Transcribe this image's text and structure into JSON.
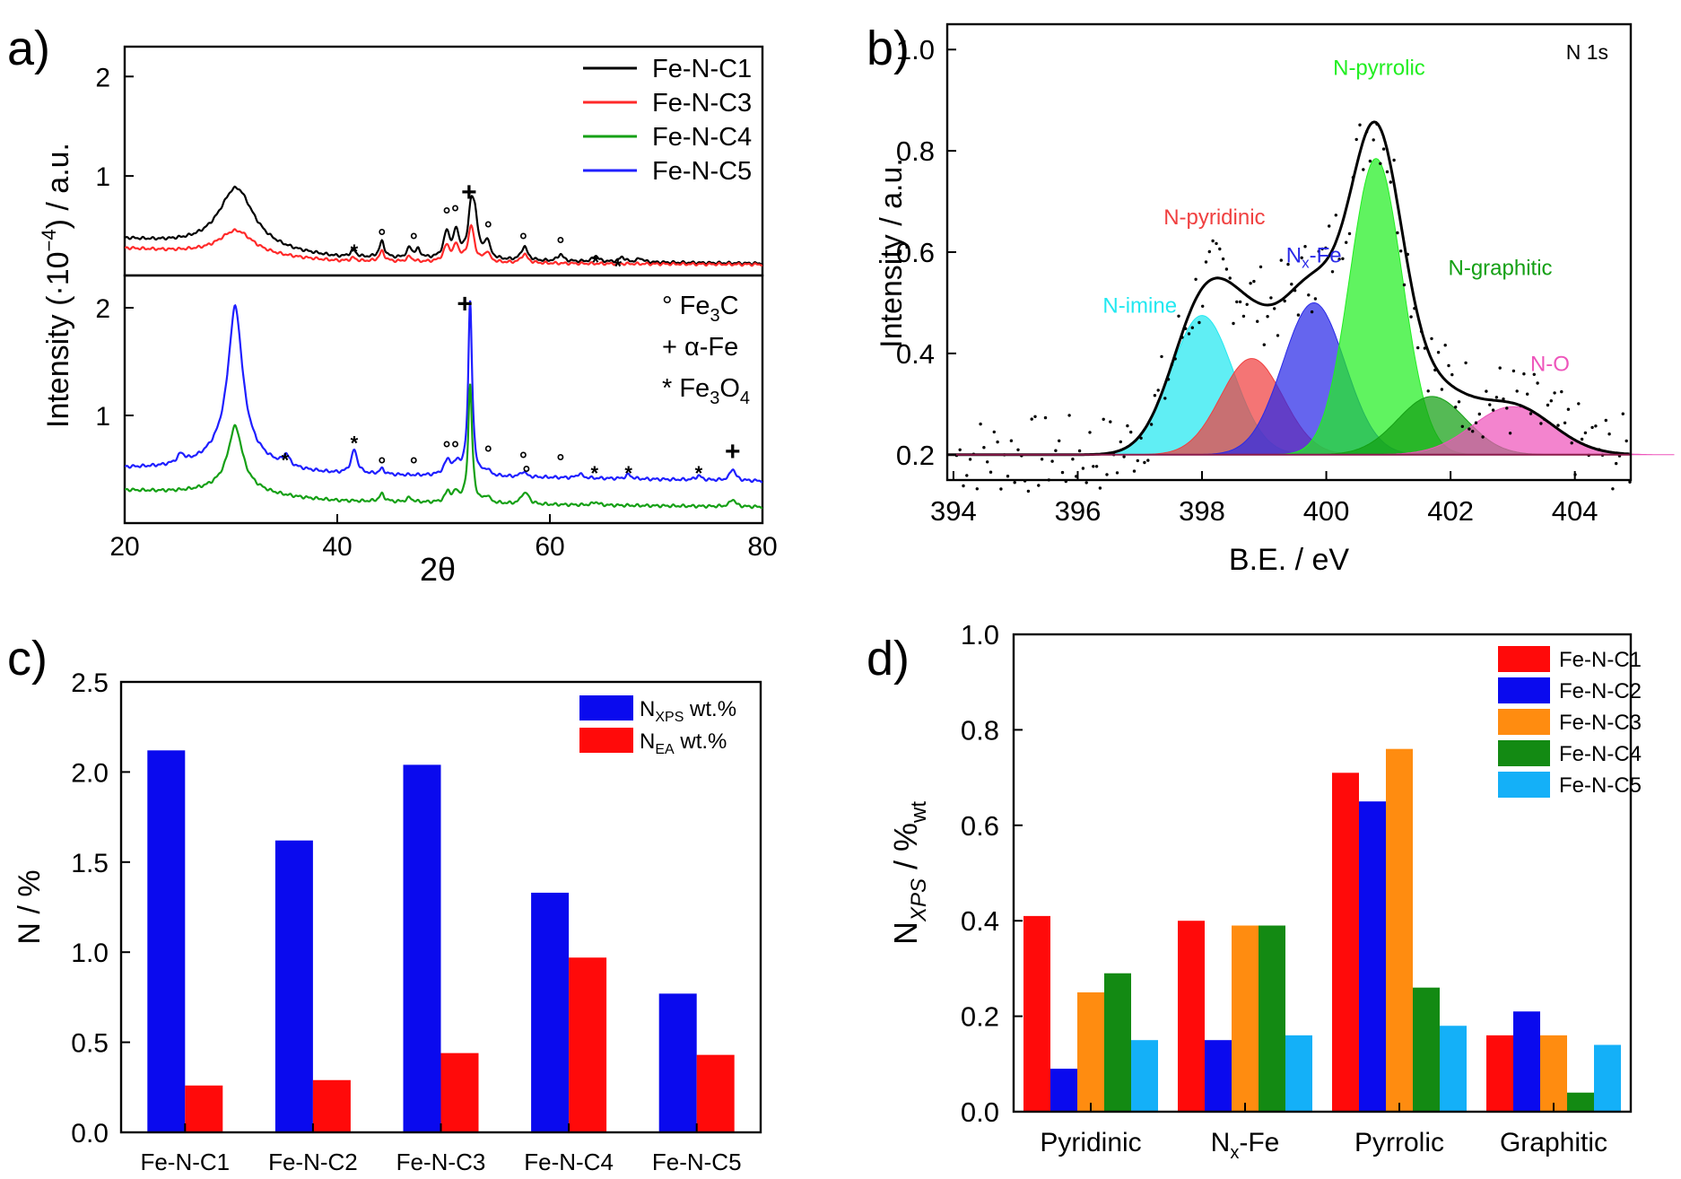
{
  "chart_data": [
    {
      "panel": "a)",
      "type": "line",
      "title": "",
      "xlabel": "2θ",
      "ylabel_main": "Intensity (·10",
      "ylabel_exp": "−4",
      "ylabel_tail": ")  / a.u.",
      "xlim": [
        20,
        80
      ],
      "xticks": [
        20,
        40,
        60,
        80
      ],
      "top": {
        "ylim": [
          0,
          2.3
        ],
        "yticks": [
          1,
          2
        ],
        "series": [
          {
            "name": "Fe-N-C1",
            "color": "#000000",
            "base": [
              [
                20,
                0.36
              ],
              [
                40,
                0.17
              ],
              [
                60,
                0.14
              ],
              [
                80,
                0.12
              ]
            ],
            "peaks": [
              [
                30.5,
                0.62,
                2.0
              ],
              [
                41.5,
                0.07,
                0.3
              ],
              [
                44.2,
                0.16,
                0.3
              ],
              [
                46.8,
                0.1,
                0.3
              ],
              [
                47.6,
                0.08,
                0.3
              ],
              [
                50.3,
                0.26,
                0.35
              ],
              [
                51.2,
                0.26,
                0.3
              ],
              [
                52.6,
                0.5,
                0.35
              ],
              [
                53.0,
                0.3,
                0.3
              ],
              [
                54.1,
                0.18,
                0.3
              ],
              [
                57.6,
                0.14,
                0.35
              ],
              [
                61.0,
                0.07,
                0.3
              ],
              [
                64.3,
                0.06,
                0.3
              ],
              [
                66.8,
                0.05,
                0.3
              ],
              [
                68.5,
                0.04,
                0.3
              ]
            ]
          },
          {
            "name": "Fe-N-C3",
            "color": "#ff2a2a",
            "base": [
              [
                20,
                0.27
              ],
              [
                40,
                0.14
              ],
              [
                60,
                0.12
              ],
              [
                80,
                0.11
              ]
            ],
            "peaks": [
              [
                30.5,
                0.25,
                2.0
              ],
              [
                41.5,
                0.03,
                0.3
              ],
              [
                44.2,
                0.1,
                0.3
              ],
              [
                46.8,
                0.05,
                0.3
              ],
              [
                50.3,
                0.16,
                0.35
              ],
              [
                51.2,
                0.16,
                0.3
              ],
              [
                52.6,
                0.36,
                0.35
              ],
              [
                54.1,
                0.1,
                0.3
              ],
              [
                57.6,
                0.09,
                0.35
              ]
            ]
          }
        ],
        "legend": [
          "Fe-N-C1",
          "Fe-N-C3",
          "Fe-N-C4",
          "Fe-N-C5"
        ],
        "markers": [
          {
            "sym": "*",
            "x": 41.6,
            "y": 0.28
          },
          {
            "sym": "°",
            "x": 44.2,
            "y": 0.4
          },
          {
            "sym": "°",
            "x": 47.2,
            "y": 0.36
          },
          {
            "sym": "°",
            "x": 50.3,
            "y": 0.62
          },
          {
            "sym": "°",
            "x": 51.1,
            "y": 0.64
          },
          {
            "sym": "+",
            "x": 52.4,
            "y": 0.82
          },
          {
            "sym": "°",
            "x": 54.2,
            "y": 0.48
          },
          {
            "sym": "°",
            "x": 57.5,
            "y": 0.36
          },
          {
            "sym": "°",
            "x": 61.0,
            "y": 0.32
          },
          {
            "sym": "*",
            "x": 64.3,
            "y": 0.17
          },
          {
            "sym": "*",
            "x": 66.4,
            "y": 0.13
          }
        ]
      },
      "bottom": {
        "ylim": [
          0,
          2.3
        ],
        "yticks": [
          1,
          2
        ],
        "series": [
          {
            "name": "Fe-N-C5",
            "color": "#1f1fff",
            "base": [
              [
                20,
                0.5
              ],
              [
                40,
                0.44
              ],
              [
                60,
                0.42
              ],
              [
                80,
                0.39
              ]
            ],
            "peaks": [
              [
                25.3,
                0.08,
                0.4
              ],
              [
                30.4,
                1.32,
                0.8
              ],
              [
                30.3,
                0.22,
                3.0
              ],
              [
                35.2,
                0.1,
                0.35
              ],
              [
                41.6,
                0.22,
                0.35
              ],
              [
                44.2,
                0.05,
                0.3
              ],
              [
                50.4,
                0.14,
                0.4
              ],
              [
                51.3,
                0.1,
                0.3
              ],
              [
                52.5,
                1.62,
                0.22
              ],
              [
                54.1,
                0.05,
                0.3
              ],
              [
                57.5,
                0.05,
                0.3
              ],
              [
                62.8,
                0.04,
                0.3
              ],
              [
                67.4,
                0.04,
                0.3
              ],
              [
                74.0,
                0.04,
                0.3
              ],
              [
                77.2,
                0.11,
                0.3
              ]
            ]
          },
          {
            "name": "Fe-N-C4",
            "color": "#16a016",
            "base": [
              [
                20,
                0.3
              ],
              [
                40,
                0.2
              ],
              [
                60,
                0.17
              ],
              [
                80,
                0.15
              ]
            ],
            "peaks": [
              [
                30.4,
                0.55,
                0.8
              ],
              [
                30.3,
                0.1,
                3.0
              ],
              [
                44.2,
                0.07,
                0.3
              ],
              [
                46.8,
                0.04,
                0.3
              ],
              [
                50.4,
                0.1,
                0.3
              ],
              [
                51.2,
                0.09,
                0.3
              ],
              [
                52.5,
                1.1,
                0.22
              ],
              [
                54.1,
                0.06,
                0.3
              ],
              [
                57.5,
                0.08,
                0.3
              ],
              [
                57.9,
                0.06,
                0.3
              ],
              [
                64.3,
                0.03,
                0.3
              ],
              [
                77.2,
                0.07,
                0.3
              ]
            ]
          }
        ],
        "legend_markers": [
          {
            "sym": "°",
            "label": "Fe",
            "sub": "3",
            "tail": "C"
          },
          {
            "sym": "+",
            "label": "α-Fe",
            "sub": "",
            "tail": ""
          },
          {
            "sym": "*",
            "label": "Fe",
            "sub": "3",
            "tail": "O",
            "sub2": "4"
          }
        ],
        "markers": [
          {
            "sym": "*",
            "x": 35.1,
            "y": 0.62
          },
          {
            "sym": "*",
            "x": 41.6,
            "y": 0.78
          },
          {
            "sym": "°",
            "x": 44.2,
            "y": 0.55
          },
          {
            "sym": "°",
            "x": 47.2,
            "y": 0.55
          },
          {
            "sym": "°",
            "x": 50.3,
            "y": 0.7
          },
          {
            "sym": "°",
            "x": 51.1,
            "y": 0.7
          },
          {
            "sym": "+",
            "x": 52.0,
            "y": 2.02
          },
          {
            "sym": "°",
            "x": 54.2,
            "y": 0.66
          },
          {
            "sym": "°",
            "x": 57.5,
            "y": 0.6
          },
          {
            "sym": "°",
            "x": 57.8,
            "y": 0.47
          },
          {
            "sym": "°",
            "x": 61.0,
            "y": 0.58
          },
          {
            "sym": "*",
            "x": 64.2,
            "y": 0.5
          },
          {
            "sym": "*",
            "x": 67.4,
            "y": 0.5
          },
          {
            "sym": "*",
            "x": 74.0,
            "y": 0.5
          },
          {
            "sym": "+",
            "x": 77.2,
            "y": 0.65
          }
        ]
      }
    },
    {
      "panel": "b)",
      "type": "area",
      "annotation": "N 1s",
      "xlabel": "B.E. / eV",
      "ylabel": "Intensity / a.u.",
      "xlim": [
        393.9,
        404.9
      ],
      "ylim": [
        0.15,
        1.05
      ],
      "xticks": [
        394,
        396,
        398,
        400,
        402,
        404
      ],
      "yticks": [
        0.2,
        0.4,
        0.6,
        0.8,
        1.0
      ],
      "baseline": 0.2,
      "components": [
        {
          "name": "N-imine",
          "color": "#22e8f0",
          "center": 398.0,
          "height": 0.275,
          "sigma": 0.5,
          "label_x": 397.0,
          "label_y": 0.48
        },
        {
          "name": "N-pyridinic",
          "color": "#f04040",
          "center": 398.8,
          "height": 0.19,
          "sigma": 0.5,
          "label_x": 398.2,
          "label_y": 0.655
        },
        {
          "name": "N",
          "name_sub": "x",
          "name_tail": "-Fe",
          "color": "#2a2ae8",
          "center": 399.8,
          "height": 0.3,
          "sigma": 0.5,
          "label_x": 399.8,
          "label_y": 0.58
        },
        {
          "name": "N-pyrrolic",
          "color": "#22ee22",
          "center": 400.8,
          "height": 0.585,
          "sigma": 0.42,
          "label_x": 400.85,
          "label_y": 0.95
        },
        {
          "name": "N-graphitic",
          "color": "#14a014",
          "center": 401.7,
          "height": 0.115,
          "sigma": 0.55,
          "label_x": 402.8,
          "label_y": 0.555
        },
        {
          "name": "N-O",
          "color": "#ee55bb",
          "center": 403.0,
          "height": 0.095,
          "sigma": 0.65,
          "label_x": 403.6,
          "label_y": 0.365
        }
      ]
    },
    {
      "panel": "c)",
      "type": "bar",
      "xlabel": "",
      "ylabel": "N / %",
      "ylim": [
        0,
        2.5
      ],
      "yticks": [
        "0.0",
        "0.5",
        "1.0",
        "1.5",
        "2.0",
        "2.5"
      ],
      "categories": [
        "Fe-N-C1",
        "Fe-N-C2",
        "Fe-N-C3",
        "Fe-N-C4",
        "Fe-N-C5"
      ],
      "series": [
        {
          "name": "N",
          "sub": "XPS",
          "tail": " wt.%",
          "color": "#0a0aee",
          "values": [
            2.12,
            1.62,
            2.04,
            1.33,
            0.77
          ]
        },
        {
          "name": "N",
          "sub": "EA",
          "tail": " wt.%",
          "color": "#ff0a0a",
          "values": [
            0.26,
            0.29,
            0.44,
            0.97,
            0.43
          ]
        }
      ]
    },
    {
      "panel": "d)",
      "type": "bar",
      "xlabel": "",
      "ylabel_main": "N",
      "ylabel_sub": "XPS",
      "ylabel_mid": " / %",
      "ylabel_sub2": "wt",
      "ylim": [
        0,
        1.0
      ],
      "yticks": [
        "0.0",
        "0.2",
        "0.4",
        "0.6",
        "0.8",
        "1.0"
      ],
      "categories": [
        "Pyridinic",
        "N_x-Fe",
        "Pyrrolic",
        "Graphitic"
      ],
      "category_labels": [
        {
          "main": "Pyridinic",
          "sub": "",
          "tail": ""
        },
        {
          "main": "N",
          "sub": "x",
          "tail": "-Fe"
        },
        {
          "main": "Pyrrolic",
          "sub": "",
          "tail": ""
        },
        {
          "main": "Graphitic",
          "sub": "",
          "tail": ""
        }
      ],
      "series": [
        {
          "name": "Fe-N-C1",
          "color": "#ff0a0a",
          "values": [
            0.41,
            0.4,
            0.71,
            0.16
          ]
        },
        {
          "name": "Fe-N-C2",
          "color": "#0a0aee",
          "values": [
            0.09,
            0.15,
            0.65,
            0.21
          ]
        },
        {
          "name": "Fe-N-C3",
          "color": "#ff8c10",
          "values": [
            0.25,
            0.39,
            0.76,
            0.16
          ]
        },
        {
          "name": "Fe-N-C4",
          "color": "#138a13",
          "values": [
            0.29,
            0.39,
            0.26,
            0.04
          ]
        },
        {
          "name": "Fe-N-C5",
          "color": "#14b0f8",
          "values": [
            0.15,
            0.16,
            0.18,
            0.14
          ]
        }
      ]
    }
  ]
}
